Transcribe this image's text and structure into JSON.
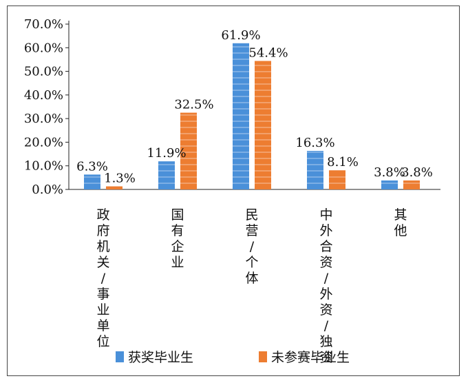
{
  "chart_data": {
    "type": "bar",
    "categories": [
      "政府机关/事业单位",
      "国有企业",
      "民营/个体",
      "中外合资/外资/独资",
      "其他"
    ],
    "series": [
      {
        "name": "获奖毕业生",
        "values": [
          6.3,
          11.9,
          61.9,
          16.3,
          3.8
        ],
        "color": "#4a90d9",
        "labels": [
          "6.3%",
          "11.9%",
          "61.9%",
          "16.3%",
          "3.8%"
        ]
      },
      {
        "name": "未参赛毕业生",
        "values": [
          1.3,
          32.5,
          54.4,
          8.1,
          3.8
        ],
        "color": "#ed7d31",
        "labels": [
          "1.3%",
          "32.5%",
          "54.4%",
          "8.1%",
          "3.8%"
        ]
      }
    ],
    "yticks": [
      "0.0%",
      "10.0%",
      "20.0%",
      "30.0%",
      "40.0%",
      "50.0%",
      "60.0%",
      "70.0%"
    ],
    "ylim": [
      0,
      70
    ],
    "grid": false,
    "legend": "bottom",
    "title": "",
    "xlabel": "",
    "ylabel": ""
  }
}
